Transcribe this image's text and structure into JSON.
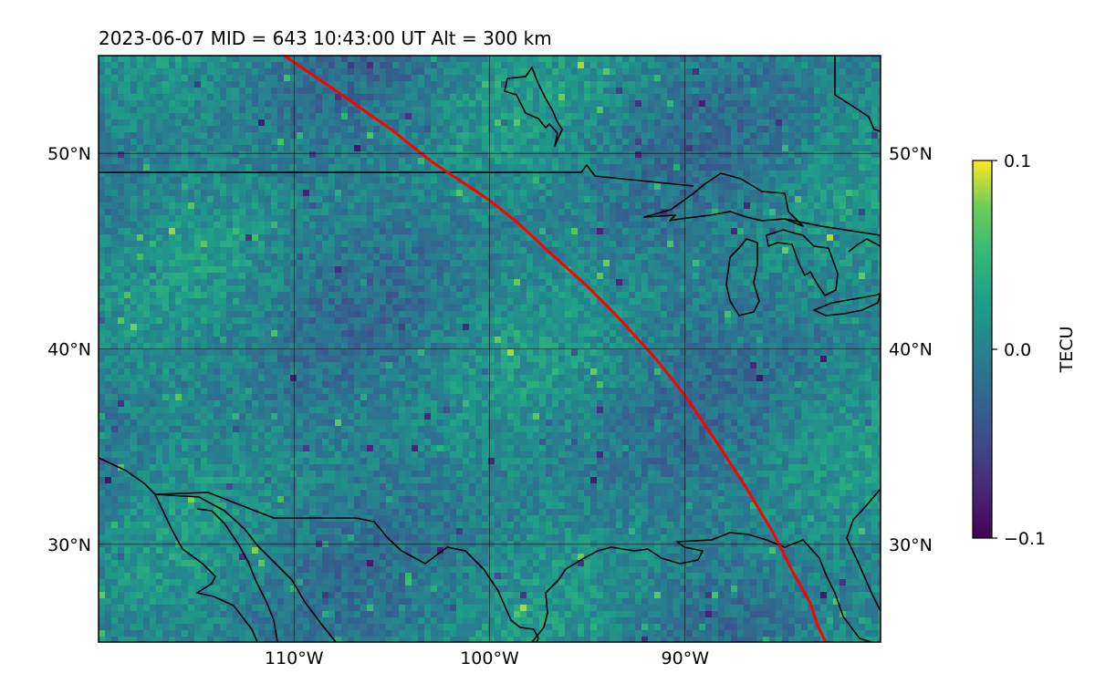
{
  "title": "2023-06-07  MID = 643    10:43:00  UT  Alt = 300 km",
  "map": {
    "lon_range": [
      -120,
      -80
    ],
    "lat_range": [
      25,
      55
    ],
    "lon_ticks": [
      {
        "lon": -110,
        "label": "110°W"
      },
      {
        "lon": -100,
        "label": "100°W"
      },
      {
        "lon": -90,
        "label": "90°W"
      }
    ],
    "lat_ticks": [
      {
        "lat": 50,
        "label": "50°N"
      },
      {
        "lat": 40,
        "label": "40°N"
      },
      {
        "lat": 30,
        "label": "30°N"
      }
    ],
    "grid": true,
    "track_color": "#ff0000",
    "track": [
      [
        -110.5,
        55
      ],
      [
        -108,
        53.3
      ],
      [
        -105,
        51.2
      ],
      [
        -103,
        49.6
      ],
      [
        -100,
        47.6
      ],
      [
        -98.5,
        46.4
      ],
      [
        -97,
        45
      ],
      [
        -95,
        43.2
      ],
      [
        -93.5,
        41.7
      ],
      [
        -91.5,
        39.5
      ],
      [
        -90,
        37.6
      ],
      [
        -88.5,
        35.4
      ],
      [
        -87,
        33.1
      ],
      [
        -85.5,
        30.6
      ],
      [
        -84.5,
        28.6
      ],
      [
        -83.6,
        27
      ],
      [
        -83.2,
        25.8
      ],
      [
        -82.8,
        25
      ]
    ]
  },
  "colorbar": {
    "label": "TECU",
    "colormap": "viridis",
    "min": -0.1,
    "max": 0.1,
    "ticks": [
      {
        "value": 0.1,
        "label": "0.1"
      },
      {
        "value": 0.0,
        "label": "0.0"
      },
      {
        "value": -0.1,
        "label": "−0.1"
      }
    ]
  }
}
